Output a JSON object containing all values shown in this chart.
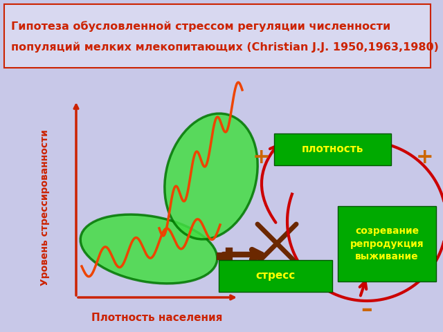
{
  "bg_color": "#c8c8e8",
  "title_box_facecolor": "#d8d8f0",
  "title_text_line1": "Гипотеза обусловленной стрессом регуляции численности",
  "title_text_line2": "популяций мелких млекопитающих (Christian J.J. 1950,1963,1980)",
  "title_color": "#cc2200",
  "title_border_color": "#cc2200",
  "xlabel": "Плотность населения",
  "ylabel": "Уровень стрессированности",
  "axis_color": "#cc2200",
  "ellipse_facecolor": "#44dd44",
  "ellipse_edgecolor": "#007700",
  "wave_color": "#ee4400",
  "arrow_body_color": "#6b2800",
  "cross_color": "#6b2800",
  "box_green_face": "#00aa00",
  "box_green_edge": "#005500",
  "box_text_color": "#ffff00",
  "circle_color": "#cc0000",
  "plus_color": "#cc6600",
  "minus_color": "#cc6600",
  "lw_axis": 2.5,
  "lw_wave": 2.5,
  "lw_circle": 3.0,
  "lw_cross": 5
}
